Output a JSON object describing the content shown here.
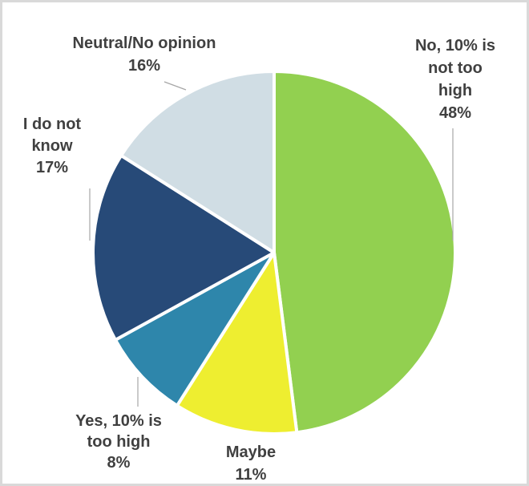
{
  "chart_data": {
    "type": "pie",
    "start_angle_deg": 0,
    "direction": "clockwise",
    "slices": [
      {
        "label": "No, 10% is not too high",
        "value": 48,
        "percent_label": "48%",
        "color": "#92d050"
      },
      {
        "label": "Maybe",
        "value": 11,
        "percent_label": "11%",
        "color": "#eeee30"
      },
      {
        "label": "Yes, 10% is too high",
        "value": 8,
        "percent_label": "8%",
        "color": "#2e86ab"
      },
      {
        "label": "I do not know",
        "value": 17,
        "percent_label": "17%",
        "color": "#274a78"
      },
      {
        "label": "Neutral/No opinion",
        "value": 16,
        "percent_label": "16%",
        "color": "#d0dde4"
      }
    ],
    "labels": [
      {
        "lines": [
          "No, 10% is",
          "not too",
          "high",
          "48%"
        ]
      },
      {
        "lines": [
          "Maybe",
          "11%"
        ]
      },
      {
        "lines": [
          "Yes, 10% is",
          "too high",
          "8%"
        ]
      },
      {
        "lines": [
          "I do not",
          "know",
          "17%"
        ]
      },
      {
        "lines": [
          "Neutral/No opinion",
          "16%"
        ]
      }
    ],
    "legend": "none"
  }
}
